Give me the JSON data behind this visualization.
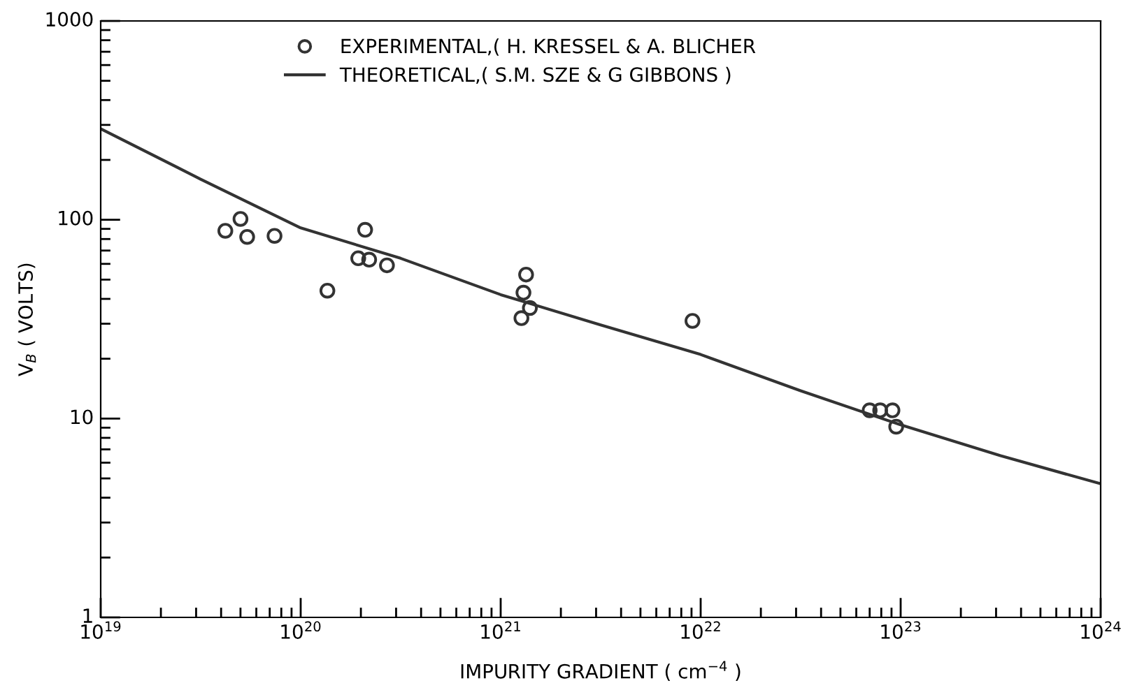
{
  "chart_data": {
    "type": "scatter",
    "xlabel": "IMPURITY GRADIENT ( cm$^{−4}$ )",
    "ylabel": "V$_{B}$ ( VOLTS)",
    "log": "xy",
    "xlim": [
      1e+19,
      1e+24
    ],
    "ylim": [
      1,
      1000
    ],
    "xticks": [
      {
        "value": 1e+19,
        "label": "10$^{19}$"
      },
      {
        "value": 1e+20,
        "label": "10$^{20}$"
      },
      {
        "value": 1e+21,
        "label": "10$^{21}$"
      },
      {
        "value": 1e+22,
        "label": "10$^{22}$"
      },
      {
        "value": 1e+23,
        "label": "10$^{23}$"
      },
      {
        "value": 1e+24,
        "label": "10$^{24}$"
      }
    ],
    "yticks": [
      1,
      10,
      100,
      1000
    ],
    "grid": false,
    "legend": "top",
    "series": [
      {
        "name": "EXPERIMENTAL,( H. KRESSEL & A. BLICHER",
        "marker": "circle",
        "color": "#333333",
        "x": [
          4.2e+19,
          5e+19,
          5.4e+19,
          7.4e+19,
          1.36e+20,
          1.94e+20,
          2.1e+20,
          2.2e+20,
          2.7e+20,
          1.34e+21,
          1.3e+21,
          1.4e+21,
          1.27e+21,
          9.1e+21,
          7e+22,
          7.9e+22,
          9.1e+22,
          9.5e+22
        ],
        "values": [
          88,
          101,
          82,
          83,
          44,
          64,
          89,
          63,
          59,
          53,
          43,
          36,
          32,
          31,
          11,
          11,
          11,
          9.1
        ]
      },
      {
        "name": "THEORETICAL,( S.M. SZE & G GIBBONS )",
        "type": "line",
        "marker": "none",
        "line_style": "solid",
        "color": "#333333",
        "x": [
          1e+19,
          3.16e+19,
          1e+20,
          3.16e+20,
          1e+21,
          3.16e+21,
          1e+22,
          3.16e+22,
          1e+23,
          3.16e+23,
          1e+24
        ],
        "values": [
          287,
          160,
          91,
          64,
          42,
          29.6,
          21,
          13.8,
          9.3,
          6.5,
          4.7
        ]
      }
    ]
  }
}
